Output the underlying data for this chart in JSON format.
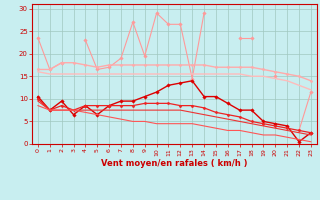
{
  "x": [
    0,
    1,
    2,
    3,
    4,
    5,
    6,
    7,
    8,
    9,
    10,
    11,
    12,
    13,
    14,
    15,
    16,
    17,
    18,
    19,
    20,
    21,
    22,
    23
  ],
  "series": [
    {
      "name": "light_pink_upper",
      "color": "#ff9999",
      "linewidth": 0.8,
      "marker": "D",
      "markersize": 1.8,
      "y": [
        23.5,
        16.5,
        18.0,
        null,
        23.0,
        16.5,
        17.0,
        19.0,
        27.0,
        19.5,
        29.0,
        26.5,
        26.5,
        14.5,
        29.0,
        null,
        null,
        23.5,
        23.5,
        null,
        15.0,
        null,
        3.0,
        11.5
      ]
    },
    {
      "name": "light_pink_mid1",
      "color": "#ffaaaa",
      "linewidth": 1.0,
      "marker": "D",
      "markersize": 1.5,
      "y": [
        16.5,
        16.5,
        18.0,
        18.0,
        17.5,
        17.0,
        17.5,
        17.5,
        17.5,
        17.5,
        17.5,
        17.5,
        17.5,
        17.5,
        17.5,
        17.0,
        17.0,
        17.0,
        17.0,
        16.5,
        16.0,
        15.5,
        15.0,
        14.0
      ]
    },
    {
      "name": "light_pink_mid2",
      "color": "#ffbbbb",
      "linewidth": 1.0,
      "marker": null,
      "markersize": 0,
      "y": [
        16.0,
        15.5,
        15.5,
        15.5,
        15.5,
        15.5,
        15.5,
        15.5,
        15.5,
        15.5,
        15.5,
        15.5,
        15.5,
        15.5,
        15.5,
        15.5,
        15.5,
        15.5,
        15.0,
        15.0,
        14.5,
        14.0,
        13.0,
        12.0
      ]
    },
    {
      "name": "red_upper",
      "color": "#dd0000",
      "linewidth": 1.0,
      "marker": "D",
      "markersize": 1.8,
      "y": [
        10.5,
        7.5,
        9.5,
        6.5,
        8.5,
        6.5,
        8.5,
        9.5,
        9.5,
        10.5,
        11.5,
        13.0,
        13.5,
        14.0,
        10.5,
        10.5,
        9.0,
        7.5,
        7.5,
        5.0,
        4.5,
        4.0,
        0.5,
        2.5
      ]
    },
    {
      "name": "red_mid",
      "color": "#ee2222",
      "linewidth": 0.9,
      "marker": "D",
      "markersize": 1.5,
      "y": [
        10.0,
        7.5,
        8.5,
        7.5,
        8.5,
        8.5,
        8.5,
        8.5,
        8.5,
        9.0,
        9.0,
        9.0,
        8.5,
        8.5,
        8.0,
        7.0,
        6.5,
        6.0,
        5.0,
        4.5,
        4.0,
        3.5,
        3.0,
        2.5
      ]
    },
    {
      "name": "red_lower1",
      "color": "#ee3333",
      "linewidth": 0.8,
      "marker": null,
      "markersize": 0,
      "y": [
        9.5,
        7.5,
        7.5,
        7.5,
        7.5,
        7.5,
        7.5,
        7.5,
        7.5,
        7.5,
        7.5,
        7.5,
        7.5,
        7.0,
        6.5,
        6.0,
        5.5,
        5.0,
        4.5,
        4.0,
        3.5,
        3.0,
        2.5,
        2.0
      ]
    },
    {
      "name": "red_lower2",
      "color": "#ff5555",
      "linewidth": 0.8,
      "marker": null,
      "markersize": 0,
      "y": [
        8.5,
        7.5,
        7.5,
        7.5,
        7.0,
        6.5,
        6.0,
        5.5,
        5.0,
        5.0,
        4.5,
        4.5,
        4.5,
        4.5,
        4.0,
        3.5,
        3.0,
        3.0,
        2.5,
        2.0,
        2.0,
        1.5,
        1.0,
        0.5
      ]
    }
  ],
  "xlim": [
    -0.5,
    23.5
  ],
  "ylim": [
    0,
    31
  ],
  "yticks": [
    0,
    5,
    10,
    15,
    20,
    25,
    30
  ],
  "xticks": [
    0,
    1,
    2,
    3,
    4,
    5,
    6,
    7,
    8,
    9,
    10,
    11,
    12,
    13,
    14,
    15,
    16,
    17,
    18,
    19,
    20,
    21,
    22,
    23
  ],
  "xlabel": "Vent moyen/en rafales ( km/h )",
  "background_color": "#c8eef0",
  "grid_color": "#a0c8c0",
  "tick_color": "#cc0000",
  "label_color": "#cc0000"
}
